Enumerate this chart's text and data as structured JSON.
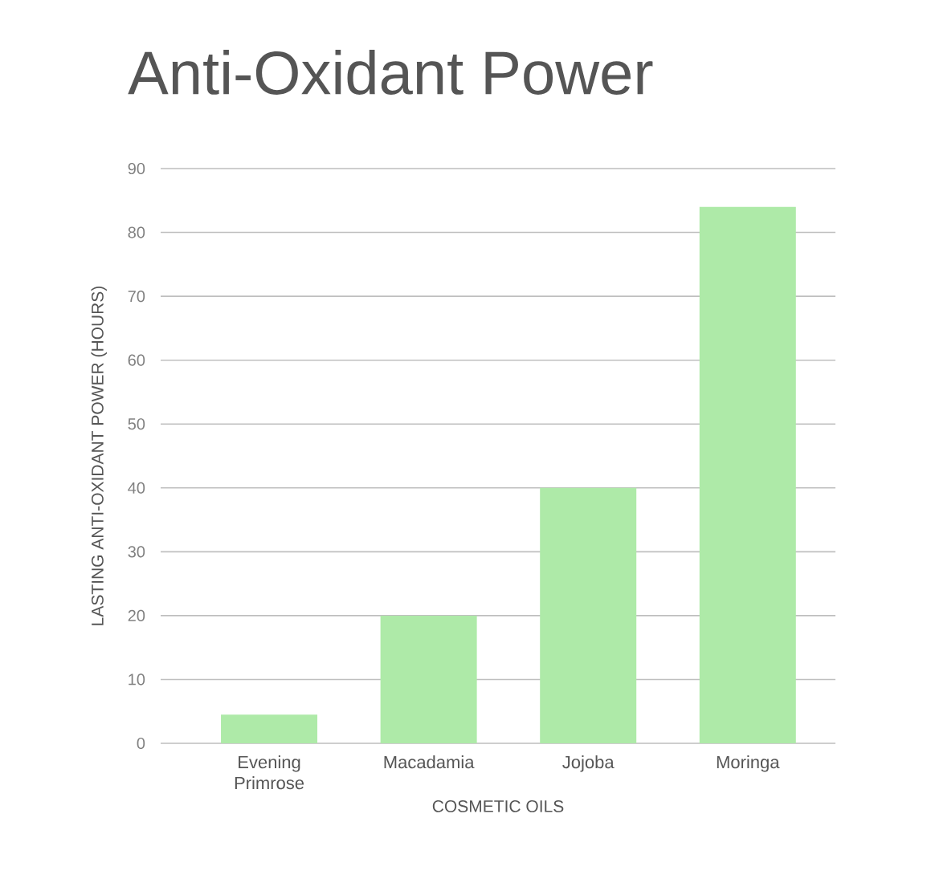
{
  "chart_data": {
    "type": "bar",
    "title": "Anti-Oxidant Power",
    "xlabel": "COSMETIC OILS",
    "ylabel": "LASTING ANTI-OXIDANT POWER (HOURS)",
    "categories": [
      "Evening Primrose",
      "Macadamia",
      "Jojoba",
      "Moringa"
    ],
    "values": [
      4.5,
      20,
      40,
      84
    ],
    "color": "#aeeaa8",
    "ylim": [
      0,
      90
    ],
    "yticks": [
      0,
      10,
      20,
      30,
      40,
      50,
      60,
      70,
      80,
      90
    ],
    "grid": "y"
  }
}
